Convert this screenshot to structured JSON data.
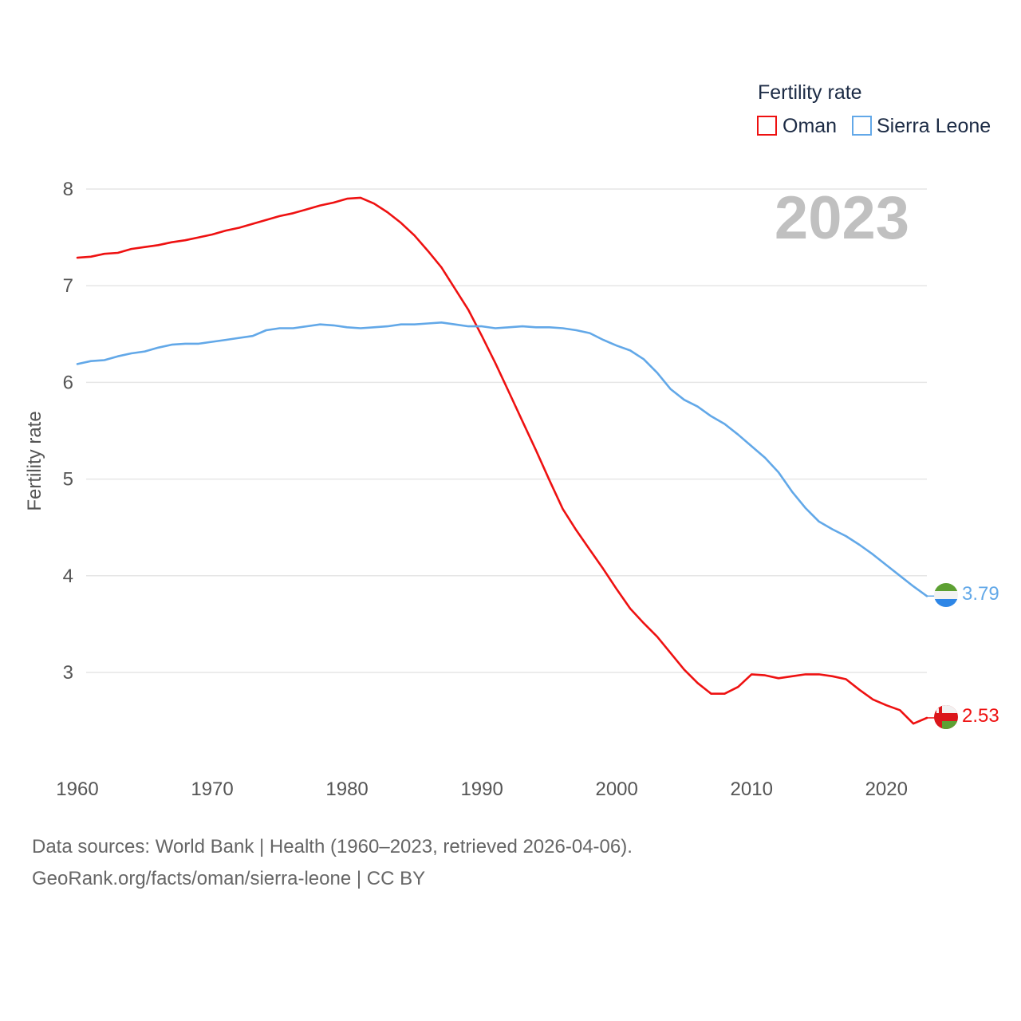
{
  "chart_data": {
    "type": "line",
    "title": "Fertility rate",
    "ylabel": "Fertility rate",
    "xlabel": "",
    "year_label": "2023",
    "xlim": [
      1960,
      2023
    ],
    "ylim": [
      2.2,
      8.2
    ],
    "x_ticks": [
      1960,
      1970,
      1980,
      1990,
      2000,
      2010,
      2020
    ],
    "y_ticks": [
      3,
      4,
      5,
      6,
      7,
      8
    ],
    "legend_title": "Fertility rate",
    "legend_position": "top-right",
    "series": [
      {
        "name": "Oman",
        "color": "#ee1111",
        "end_label": "2.53",
        "x": [
          1960,
          1961,
          1962,
          1963,
          1964,
          1965,
          1966,
          1967,
          1968,
          1969,
          1970,
          1971,
          1972,
          1973,
          1974,
          1975,
          1976,
          1977,
          1978,
          1979,
          1980,
          1981,
          1982,
          1983,
          1984,
          1985,
          1986,
          1987,
          1988,
          1989,
          1990,
          1991,
          1992,
          1993,
          1994,
          1995,
          1996,
          1997,
          1998,
          1999,
          2000,
          2001,
          2002,
          2003,
          2004,
          2005,
          2006,
          2007,
          2008,
          2009,
          2010,
          2011,
          2012,
          2013,
          2014,
          2015,
          2016,
          2017,
          2018,
          2019,
          2020,
          2021,
          2022,
          2023
        ],
        "values": [
          7.29,
          7.3,
          7.33,
          7.34,
          7.38,
          7.4,
          7.42,
          7.45,
          7.47,
          7.5,
          7.53,
          7.57,
          7.6,
          7.64,
          7.68,
          7.72,
          7.75,
          7.79,
          7.83,
          7.86,
          7.9,
          7.91,
          7.85,
          7.76,
          7.65,
          7.52,
          7.36,
          7.19,
          6.97,
          6.75,
          6.48,
          6.2,
          5.9,
          5.6,
          5.3,
          4.99,
          4.69,
          4.47,
          4.27,
          4.07,
          3.86,
          3.66,
          3.51,
          3.37,
          3.2,
          3.03,
          2.89,
          2.78,
          2.78,
          2.85,
          2.98,
          2.97,
          2.94,
          2.96,
          2.98,
          2.98,
          2.96,
          2.93,
          2.82,
          2.72,
          2.66,
          2.61,
          2.47,
          2.53
        ]
      },
      {
        "name": "Sierra Leone",
        "color": "#62a8e8",
        "end_label": "3.79",
        "x": [
          1960,
          1961,
          1962,
          1963,
          1964,
          1965,
          1966,
          1967,
          1968,
          1969,
          1970,
          1971,
          1972,
          1973,
          1974,
          1975,
          1976,
          1977,
          1978,
          1979,
          1980,
          1981,
          1982,
          1983,
          1984,
          1985,
          1986,
          1987,
          1988,
          1989,
          1990,
          1991,
          1992,
          1993,
          1994,
          1995,
          1996,
          1997,
          1998,
          1999,
          2000,
          2001,
          2002,
          2003,
          2004,
          2005,
          2006,
          2007,
          2008,
          2009,
          2010,
          2011,
          2012,
          2013,
          2014,
          2015,
          2016,
          2017,
          2018,
          2019,
          2020,
          2021,
          2022,
          2023
        ],
        "values": [
          6.19,
          6.22,
          6.23,
          6.27,
          6.3,
          6.32,
          6.36,
          6.39,
          6.4,
          6.4,
          6.42,
          6.44,
          6.46,
          6.48,
          6.54,
          6.56,
          6.56,
          6.58,
          6.6,
          6.59,
          6.57,
          6.56,
          6.57,
          6.58,
          6.6,
          6.6,
          6.61,
          6.62,
          6.6,
          6.58,
          6.58,
          6.56,
          6.57,
          6.58,
          6.57,
          6.57,
          6.56,
          6.54,
          6.51,
          6.44,
          6.38,
          6.33,
          6.24,
          6.1,
          5.93,
          5.82,
          5.75,
          5.65,
          5.57,
          5.46,
          5.34,
          5.22,
          5.07,
          4.87,
          4.7,
          4.56,
          4.48,
          4.41,
          4.32,
          4.22,
          4.11,
          4.0,
          3.89,
          3.79
        ]
      }
    ]
  },
  "source": {
    "line1": "Data sources: World Bank | Health (1960–2023, retrieved 2026-04-06).",
    "line2": "GeoRank.org/facts/oman/sierra-leone | CC BY"
  },
  "flags": {
    "oman": "oman-flag-icon",
    "sierra_leone": "sierra-leone-flag-icon"
  }
}
